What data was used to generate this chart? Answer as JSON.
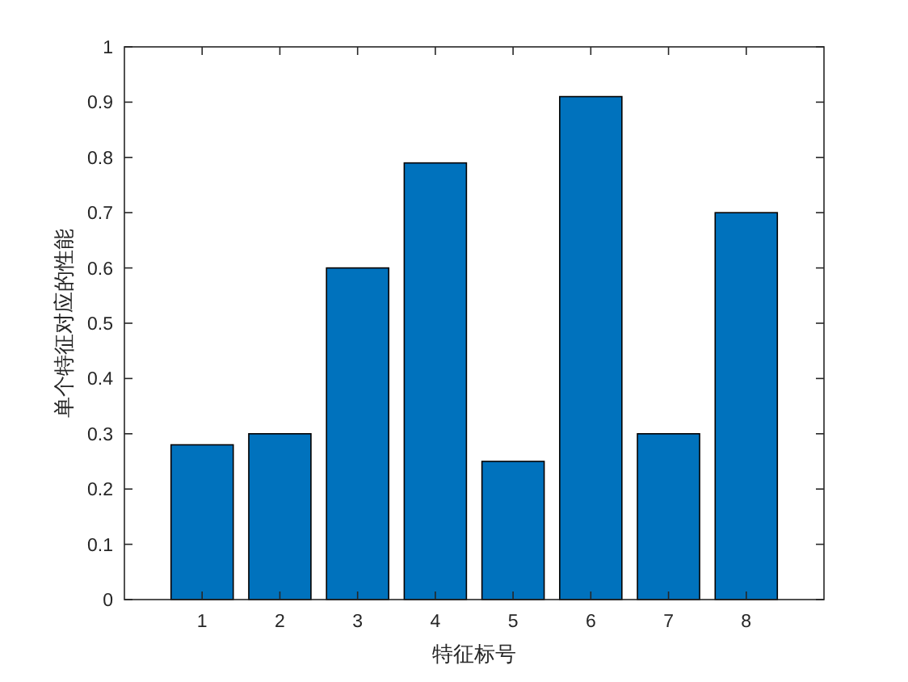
{
  "chart_data": {
    "type": "bar",
    "xlabel": "特征标号",
    "ylabel": "单个特征对应的性能",
    "categories": [
      "1",
      "2",
      "3",
      "4",
      "5",
      "6",
      "7",
      "8"
    ],
    "values": [
      0.28,
      0.3,
      0.6,
      0.79,
      0.25,
      0.91,
      0.3,
      0.7
    ],
    "color": "#0072bd",
    "ylim": [
      0,
      1
    ],
    "yticks": [
      0,
      0.1,
      0.2,
      0.3,
      0.4,
      0.5,
      0.6,
      0.7,
      0.8,
      0.9,
      1
    ]
  }
}
